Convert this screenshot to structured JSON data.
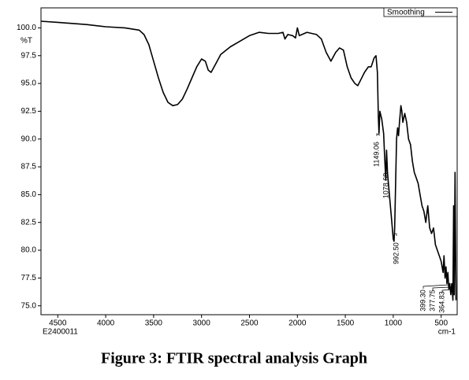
{
  "chart_data": {
    "type": "line",
    "caption": "Figure 3: FTIR spectral analysis Graph",
    "y_label": "%T",
    "x_label": "cm-1",
    "sample_id": "E2400011",
    "annotations": [
      "1149.06",
      "1078.68",
      "992.50",
      "399.30",
      "377.75",
      "364.83"
    ],
    "xlim": [
      4675,
      333
    ],
    "ylim": [
      74.2,
      101.8
    ],
    "xticks": [
      4500,
      4000,
      3500,
      3000,
      2500,
      2000,
      1500,
      1000,
      500
    ],
    "yticks": [
      {
        "value": 100,
        "label": "100.0"
      },
      97.5,
      {
        "value": 95,
        "label": "95.0"
      },
      92.5,
      {
        "value": 90,
        "label": "90.0"
      },
      87.5,
      {
        "value": 85,
        "label": "85.0"
      },
      82.5,
      {
        "value": 80,
        "label": "80.0"
      },
      77.5,
      {
        "value": 75,
        "label": "75.0"
      }
    ],
    "x": [
      4675,
      4500,
      4200,
      4000,
      3800,
      3650,
      3600,
      3550,
      3500,
      3450,
      3400,
      3350,
      3300,
      3250,
      3200,
      3150,
      3100,
      3050,
      3000,
      2960,
      2930,
      2900,
      2850,
      2800,
      2700,
      2600,
      2500,
      2400,
      2300,
      2200,
      2150,
      2130,
      2100,
      2050,
      2020,
      2000,
      1980,
      1900,
      1800,
      1750,
      1700,
      1650,
      1600,
      1560,
      1520,
      1480,
      1440,
      1400,
      1370,
      1340,
      1300,
      1260,
      1230,
      1200,
      1180,
      1165,
      1155,
      1149,
      1140,
      1120,
      1100,
      1090,
      1078,
      1070,
      1060,
      1040,
      1020,
      1000,
      992,
      985,
      975,
      965,
      955,
      945,
      935,
      920,
      910,
      900,
      880,
      860,
      840,
      820,
      800,
      780,
      760,
      740,
      720,
      700,
      680,
      660,
      640,
      620,
      600,
      580,
      560,
      540,
      520,
      500,
      480,
      470,
      460,
      450,
      440,
      430,
      420,
      410,
      400,
      390,
      377,
      370,
      364,
      355,
      345
    ],
    "series": [
      {
        "name": "Smoothing",
        "color": "#000000",
        "values": [
          100.6,
          100.5,
          100.3,
          100.1,
          100.0,
          99.8,
          99.4,
          98.5,
          97.0,
          95.5,
          94.2,
          93.3,
          93.0,
          93.1,
          93.6,
          94.5,
          95.5,
          96.5,
          97.2,
          97.0,
          96.2,
          96.0,
          96.8,
          97.6,
          98.3,
          98.8,
          99.3,
          99.6,
          99.5,
          99.5,
          99.6,
          99.0,
          99.4,
          99.3,
          99.1,
          100.0,
          99.3,
          99.6,
          99.4,
          99.0,
          97.8,
          97.0,
          97.8,
          98.2,
          98.0,
          96.5,
          95.5,
          95.0,
          94.8,
          95.3,
          96.0,
          96.5,
          96.5,
          97.3,
          97.5,
          96.0,
          92.0,
          90.5,
          92.5,
          91.8,
          90.5,
          88.5,
          86.3,
          89.0,
          87.0,
          85.0,
          83.0,
          81.0,
          80.8,
          82.0,
          86.0,
          90.0,
          91.0,
          90.3,
          91.5,
          93.0,
          92.5,
          91.5,
          92.3,
          91.5,
          90.0,
          89.5,
          88.0,
          87.0,
          86.5,
          86.0,
          85.0,
          84.0,
          83.5,
          82.5,
          84.0,
          82.0,
          81.5,
          82.0,
          80.5,
          80.0,
          79.5,
          79.0,
          78.0,
          79.5,
          77.5,
          78.5,
          77.0,
          78.0,
          76.5,
          77.0,
          76.0,
          77.0,
          75.5,
          84.0,
          76.0,
          87.0,
          75.5
        ]
      }
    ]
  }
}
